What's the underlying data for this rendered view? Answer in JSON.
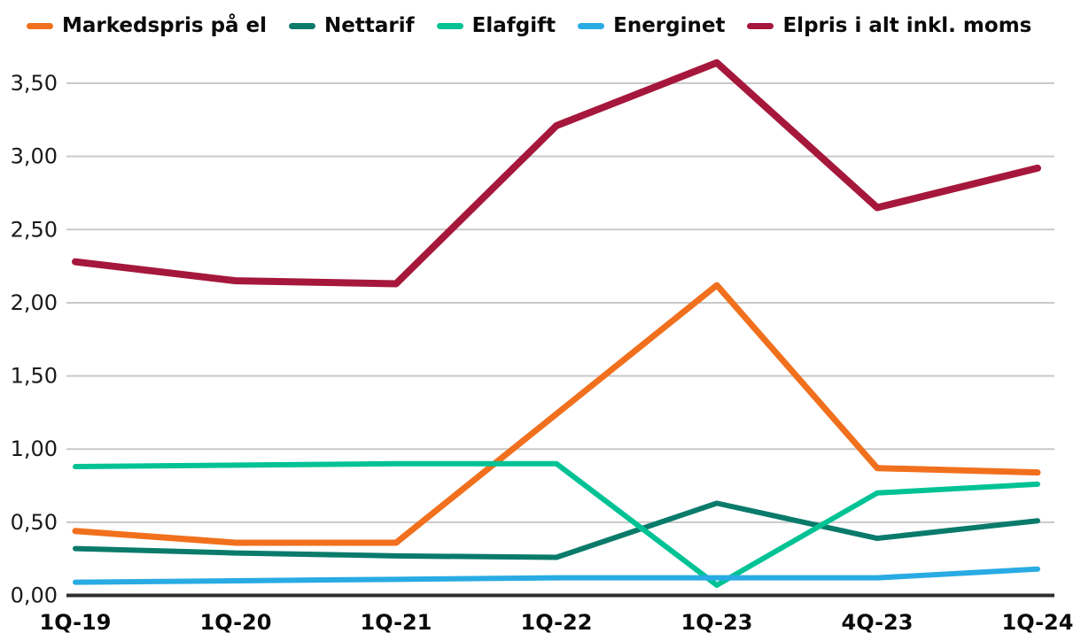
{
  "chart_data": {
    "type": "line",
    "title": "",
    "xlabel": "",
    "ylabel": "",
    "categories": [
      "1Q-19",
      "1Q-20",
      "1Q-21",
      "1Q-22",
      "1Q-23",
      "4Q-23",
      "1Q-24"
    ],
    "series": [
      {
        "name": "Markedspris på el",
        "color": "#F1701D",
        "stroke_width": 7,
        "values": [
          0.44,
          0.36,
          0.36,
          1.24,
          2.12,
          0.87,
          0.84
        ]
      },
      {
        "name": "Nettarif",
        "color": "#0A7B6B",
        "stroke_width": 6,
        "values": [
          0.32,
          0.29,
          0.27,
          0.26,
          0.63,
          0.39,
          0.51
        ]
      },
      {
        "name": "Elafgift",
        "color": "#00C295",
        "stroke_width": 6,
        "values": [
          0.88,
          0.89,
          0.9,
          0.9,
          0.07,
          0.7,
          0.76
        ]
      },
      {
        "name": "Energinet",
        "color": "#29ABE3",
        "stroke_width": 6,
        "values": [
          0.09,
          0.1,
          0.11,
          0.12,
          0.12,
          0.12,
          0.18
        ]
      },
      {
        "name": "Elpris i alt inkl. moms",
        "color": "#A6173C",
        "stroke_width": 8,
        "values": [
          2.28,
          2.15,
          2.13,
          3.21,
          3.64,
          2.65,
          2.92
        ]
      }
    ],
    "ylim": [
      0,
      3.5
    ],
    "ytick_values": [
      0,
      0.5,
      1.0,
      1.5,
      2.0,
      2.5,
      3.0,
      3.5
    ],
    "ytick_labels": [
      "0,00",
      "0,50",
      "1,00",
      "1,50",
      "2,00",
      "2,50",
      "3,00",
      "3,50"
    ],
    "decimal_separator": ",",
    "grid": "horizontal",
    "legend_position": "top"
  },
  "colors": {
    "background": "#ffffff",
    "gridline": "#c9c9c9",
    "axis_line": "#2e2e2e",
    "tick_text": "#1a1a1a",
    "legend_text": "#0a0a0a"
  }
}
